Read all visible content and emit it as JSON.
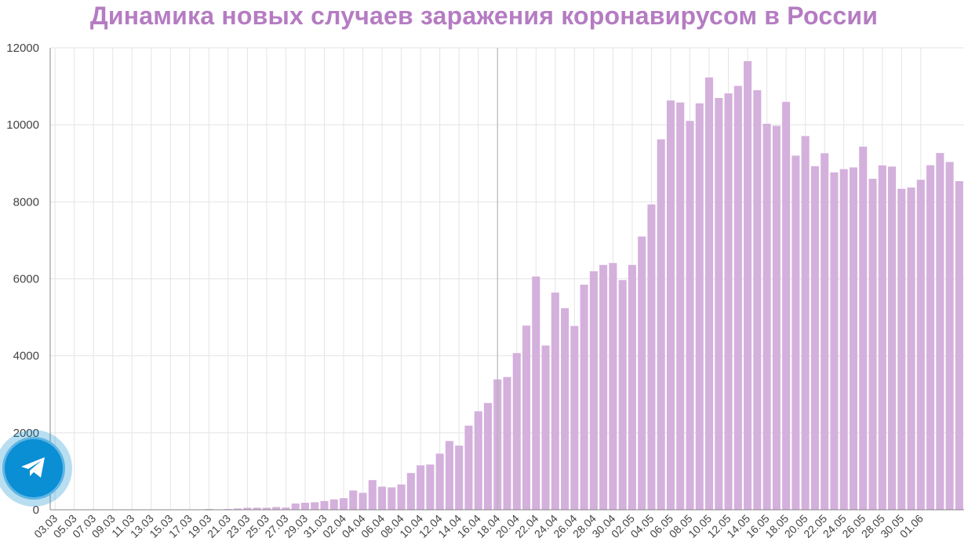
{
  "chart_data": {
    "type": "bar",
    "title": "Динамика новых случаев заражения коронавирусом в России",
    "xlabel": "",
    "ylabel": "",
    "ylim": [
      0,
      12000
    ],
    "yticks": [
      0,
      2000,
      4000,
      6000,
      8000,
      10000,
      12000
    ],
    "xtick_labels": [
      "03.03",
      "05.03",
      "07.03",
      "09.03",
      "11.03",
      "13.03",
      "15.03",
      "17.03",
      "19.03",
      "21.03",
      "23.03",
      "25.03",
      "27.03",
      "29.03",
      "31.03",
      "02.04",
      "04.04",
      "06.04",
      "08.04",
      "10.04",
      "12.04",
      "14.04",
      "16.04",
      "18.04",
      "20.04",
      "22.04",
      "24.04",
      "26.04",
      "28.04",
      "30.04",
      "02.05",
      "04.05",
      "06.05",
      "08.05",
      "10.05",
      "12.05",
      "14.05",
      "16.05",
      "18.05",
      "20.05",
      "22.05",
      "24.05",
      "26.05",
      "28.05",
      "30.05",
      "01.06"
    ],
    "first_date": "03.03",
    "values": [
      3,
      0,
      0,
      0,
      0,
      0,
      0,
      0,
      0,
      0,
      3,
      0,
      3,
      3,
      0,
      2,
      20,
      4,
      20,
      33,
      52,
      54,
      53,
      71,
      57,
      163,
      182,
      196,
      228,
      270,
      302,
      501,
      440,
      771,
      601,
      582,
      658,
      954,
      1154,
      1175,
      1459,
      1786,
      1667,
      2186,
      2558,
      2774,
      3388,
      3448,
      4070,
      4785,
      6060,
      4268,
      5642,
      5236,
      4774,
      5849,
      6198,
      6361,
      6411,
      5966,
      6361,
      7099,
      7933,
      9623,
      10633,
      10581,
      10102,
      10559,
      11231,
      10699,
      10817,
      11012,
      11656,
      10899,
      10028,
      9974,
      10598,
      9200,
      9709,
      8926,
      9263,
      8764,
      8849,
      8894,
      9434,
      8599,
      8946,
      8915,
      8338,
      8371,
      8572,
      8952,
      9268,
      9035,
      8536
    ]
  },
  "telegram": {
    "icon": "telegram-icon",
    "color": "#0a8ed4"
  },
  "colors": {
    "bar": "#d4b0dc",
    "title": "#b57cc2",
    "grid": "#e4e4e4",
    "axis": "#888888"
  }
}
